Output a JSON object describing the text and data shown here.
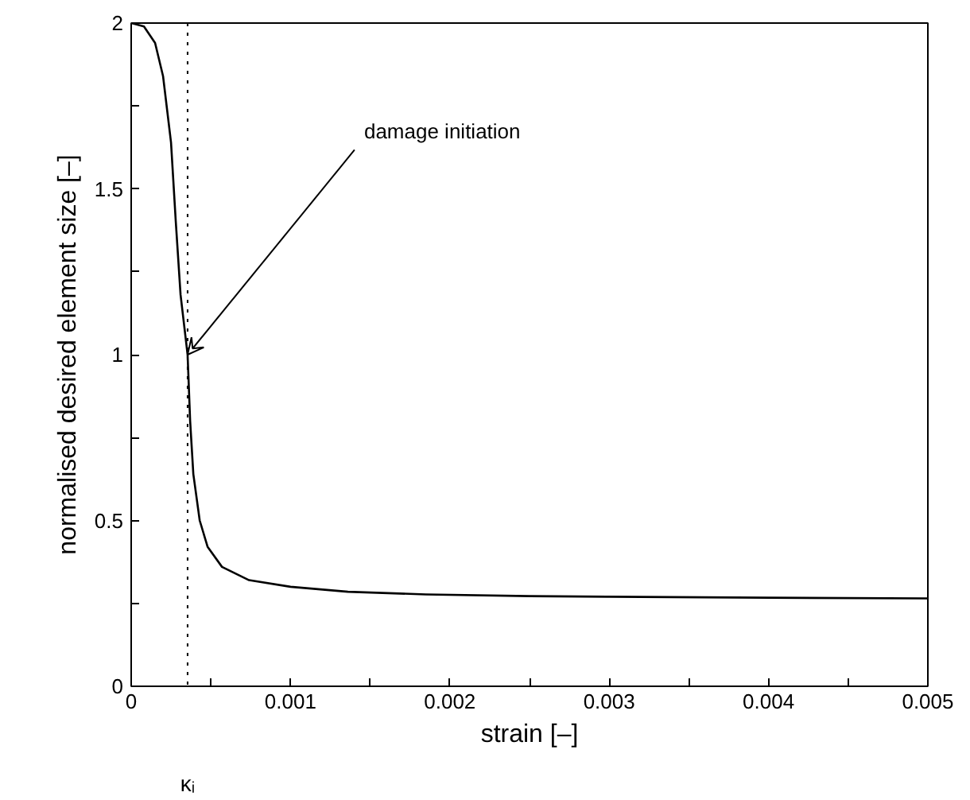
{
  "chart_data": {
    "type": "line",
    "xlabel": "strain [–]",
    "ylabel": "normalised desired element size [–]",
    "x": [
      0,
      8e-05,
      0.00015,
      0.0002,
      0.00025,
      0.00028,
      0.00031,
      0.000354,
      0.00037,
      0.00039,
      0.00043,
      0.00048,
      0.00057,
      0.00074,
      0.001,
      0.00136,
      0.00185,
      0.0025,
      0.003,
      0.004,
      0.005
    ],
    "values": [
      2.0,
      1.99,
      1.94,
      1.84,
      1.64,
      1.4,
      1.18,
      1.0,
      0.8,
      0.64,
      0.5,
      0.42,
      0.36,
      0.32,
      0.3,
      0.285,
      0.277,
      0.272,
      0.27,
      0.267,
      0.265
    ],
    "color": "#000000",
    "line_style": "solid",
    "marker": "none",
    "grid": false,
    "xlim": [
      0,
      0.005
    ],
    "ylim": [
      0,
      2
    ],
    "xticks": [
      0,
      {
        "value": 0.0005,
        "label": null
      },
      0.001,
      {
        "value": 0.0015,
        "label": null
      },
      0.002,
      {
        "value": 0.0025,
        "label": null
      },
      0.003,
      {
        "value": 0.0035,
        "label": null
      },
      0.004,
      {
        "value": 0.0045,
        "label": null
      },
      0.005
    ],
    "yticks": [
      0,
      {
        "value": 0.25,
        "label": null
      },
      0.5,
      {
        "value": 0.75,
        "label": null
      },
      1,
      {
        "value": 1.25,
        "label": null
      },
      1.5,
      {
        "value": 1.75,
        "label": null
      },
      2
    ],
    "ref_lines": [
      {
        "axis": "x",
        "value": 0.000354,
        "label": "κᵢ",
        "line_style": "dotted",
        "color": "#000000"
      }
    ],
    "annotations": [
      {
        "text": "damage initiation",
        "x": 0.000354,
        "y": 1.0
      }
    ]
  }
}
